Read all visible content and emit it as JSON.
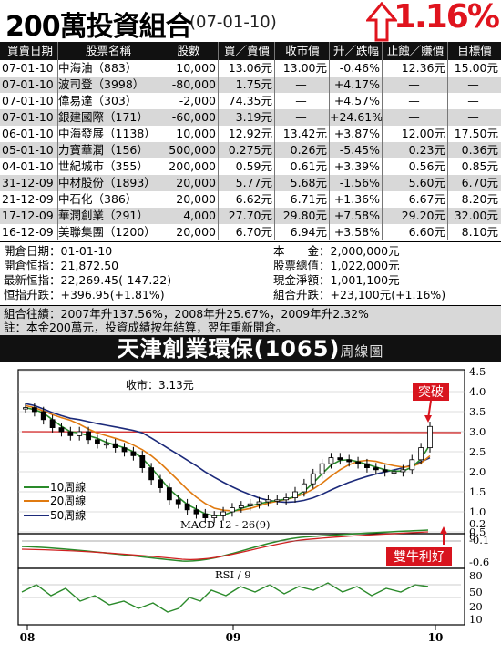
{
  "header": {
    "title": "200萬投資組合",
    "date": "(07-01-10)",
    "performance": "1.16%"
  },
  "table": {
    "columns": [
      "買賣日期",
      "股票名稱",
      "股數",
      "買／賣價",
      "收市價",
      "升／跌幅",
      "止蝕／賺價",
      "目標價"
    ],
    "rows": [
      [
        "07-01-10",
        "中海油（883）",
        "10,000",
        "13.06元",
        "13.00元",
        "-0.46%",
        "12.36元",
        "15.00元"
      ],
      [
        "07-01-10",
        "波司登（3998）",
        "-80,000",
        "1.75元",
        "—",
        "+4.17%",
        "—",
        "—"
      ],
      [
        "07-01-10",
        "偉易達（303）",
        "-2,000",
        "74.35元",
        "—",
        "+4.57%",
        "—",
        "—"
      ],
      [
        "07-01-10",
        "銀建國際（171）",
        "-60,000",
        "3.19元",
        "—",
        "+24.61%",
        "—",
        "—"
      ],
      [
        "06-01-10",
        "中海發展（1138）",
        "10,000",
        "12.92元",
        "13.42元",
        "+3.87%",
        "12.00元",
        "17.50元"
      ],
      [
        "05-01-10",
        "力寶華潤（156）",
        "500,000",
        "0.275元",
        "0.26元",
        "-5.45%",
        "0.23元",
        "0.36元"
      ],
      [
        "04-01-10",
        "世紀城市（355）",
        "200,000",
        "0.59元",
        "0.61元",
        "+3.39%",
        "0.56元",
        "0.85元"
      ],
      [
        "31-12-09",
        "中材股份（1893）",
        "20,000",
        "5.77元",
        "5.68元",
        "-1.56%",
        "5.60元",
        "6.70元"
      ],
      [
        "21-12-09",
        "中石化（386）",
        "20,000",
        "6.62元",
        "6.71元",
        "+1.36%",
        "6.67元",
        "8.20元"
      ],
      [
        "17-12-09",
        "華潤創業（291）",
        "4,000",
        "27.70元",
        "29.80元",
        "+7.58%",
        "29.20元",
        "32.00元"
      ],
      [
        "16-12-09",
        "美聯集團（1200）",
        "20,000",
        "6.70元",
        "6.94元",
        "+3.58%",
        "6.60元",
        "8.10元"
      ]
    ]
  },
  "summary": {
    "open_date": "開倉日期：01-01-10",
    "open_hsi": "開倉恒指：21,872.50",
    "latest_hsi": "最新恒指：22,269.45(-147.22)",
    "hsi_change": "恒指升跌：+396.95(+1.81%)",
    "capital": "本　　金：2,000,000元",
    "stock_value": "股票總值：1,022,000元",
    "cash": "現金淨額：1,001,100元",
    "portfolio_change": "組合升跌：+23,100元(+1.16%)",
    "history": "組合往績：2007年升137.56%，2008年升25.67%，2009年升2.32%",
    "note": "註：本金200萬元，投資成績按年結算，翌年重新開倉。"
  },
  "chart_header": {
    "title": "天津創業環保(1065)",
    "subtitle": "周線圖"
  },
  "chart_data": {
    "type": "line",
    "close_label": "收市：3.13元",
    "annotation_breakout": "突破",
    "annotation_macd": "雙牛利好",
    "x_ticks": [
      "08",
      "09",
      "10"
    ],
    "price_axis": {
      "ticks": [
        "4.5",
        "4.0",
        "3.5",
        "3.0",
        "2.5",
        "2.0",
        "1.5",
        "1.0",
        "0.5"
      ],
      "ylim": [
        0.5,
        4.5
      ]
    },
    "legend": [
      "10周線",
      "20周線",
      "50周線"
    ],
    "series_colors": {
      "price": "#000000",
      "ma10": "#2a8a2a",
      "ma20": "#e07a10",
      "ma50": "#1c2a7a",
      "resistance": "#d02020"
    },
    "price_series": [
      3.6,
      3.5,
      3.3,
      3.1,
      3.0,
      2.9,
      3.0,
      2.8,
      2.7,
      2.7,
      2.6,
      2.5,
      2.4,
      2.1,
      1.8,
      1.6,
      1.3,
      1.2,
      1.05,
      0.95,
      0.85,
      0.9,
      1.0,
      1.1,
      1.15,
      1.2,
      1.25,
      1.3,
      1.3,
      1.35,
      1.5,
      1.7,
      1.95,
      2.2,
      2.35,
      2.3,
      2.25,
      2.2,
      2.1,
      2.05,
      2.0,
      2.0,
      2.05,
      2.3,
      2.6,
      3.13
    ],
    "resistance": 3.0,
    "macd": {
      "title": "MACD 12 - 26(9)",
      "ticks": [
        "0.2",
        "0",
        "-0.1",
        "-0.6"
      ]
    },
    "rsi": {
      "title": "RSI / 9",
      "ticks": [
        "80",
        "50",
        "20",
        "10"
      ]
    }
  }
}
